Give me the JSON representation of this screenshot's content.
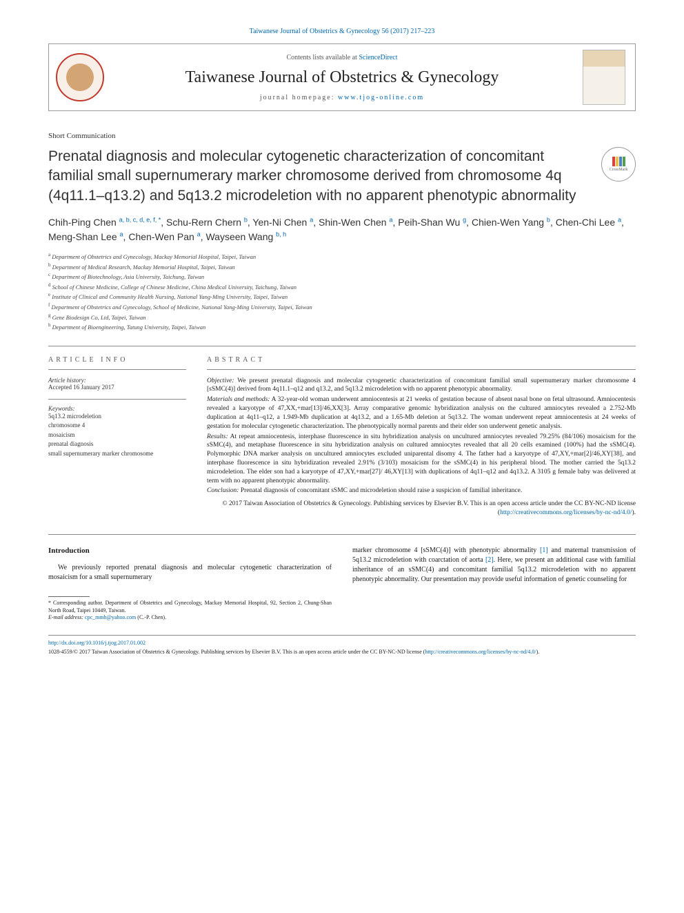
{
  "citation": "Taiwanese Journal of Obstetrics & Gynecology 56 (2017) 217–223",
  "header": {
    "contents_prefix": "Contents lists available at ",
    "contents_link": "ScienceDirect",
    "journal_name": "Taiwanese Journal of Obstetrics & Gynecology",
    "homepage_prefix": "journal homepage: ",
    "homepage_url": "www.tjog-online.com"
  },
  "crossmark_label": "CrossMark",
  "article_type": "Short Communication",
  "title": "Prenatal diagnosis and molecular cytogenetic characterization of concomitant familial small supernumerary marker chromosome derived from chromosome 4q (4q11.1–q13.2) and 5q13.2 microdeletion with no apparent phenotypic abnormality",
  "authors": [
    {
      "name": "Chih-Ping Chen",
      "aff": "a, b, c, d, e, f, *"
    },
    {
      "name": "Schu-Rern Chern",
      "aff": "b"
    },
    {
      "name": "Yen-Ni Chen",
      "aff": "a"
    },
    {
      "name": "Shin-Wen Chen",
      "aff": "a"
    },
    {
      "name": "Peih-Shan Wu",
      "aff": "g"
    },
    {
      "name": "Chien-Wen Yang",
      "aff": "b"
    },
    {
      "name": "Chen-Chi Lee",
      "aff": "a"
    },
    {
      "name": "Meng-Shan Lee",
      "aff": "a"
    },
    {
      "name": "Chen-Wen Pan",
      "aff": "a"
    },
    {
      "name": "Wayseen Wang",
      "aff": "b, h"
    }
  ],
  "affiliations": [
    {
      "key": "a",
      "text": "Department of Obstetrics and Gynecology, Mackay Memorial Hospital, Taipei, Taiwan"
    },
    {
      "key": "b",
      "text": "Department of Medical Research, Mackay Memorial Hospital, Taipei, Taiwan"
    },
    {
      "key": "c",
      "text": "Department of Biotechnology, Asia University, Taichung, Taiwan"
    },
    {
      "key": "d",
      "text": "School of Chinese Medicine, College of Chinese Medicine, China Medical University, Taichung, Taiwan"
    },
    {
      "key": "e",
      "text": "Institute of Clinical and Community Health Nursing, National Yang-Ming University, Taipei, Taiwan"
    },
    {
      "key": "f",
      "text": "Department of Obstetrics and Gynecology, School of Medicine, National Yang-Ming University, Taipei, Taiwan"
    },
    {
      "key": "g",
      "text": "Gene Biodesign Co, Ltd, Taipei, Taiwan"
    },
    {
      "key": "h",
      "text": "Department of Bioengineering, Tatung University, Taipei, Taiwan"
    }
  ],
  "info": {
    "heading": "ARTICLE INFO",
    "history_label": "Article history:",
    "history_text": "Accepted 16 January 2017",
    "keywords_label": "Keywords:",
    "keywords": [
      "5q13.2 microdeletion",
      "chromosome 4",
      "mosaicism",
      "prenatal diagnosis",
      "small supernumerary marker chromosome"
    ]
  },
  "abstract": {
    "heading": "ABSTRACT",
    "objective_label": "Objective:",
    "objective": " We present prenatal diagnosis and molecular cytogenetic characterization of concomitant familial small supernumerary marker chromosome 4 [sSMC(4)] derived from 4q11.1–q12 and q13.2, and 5q13.2 microdeletion with no apparent phenotypic abnormality.",
    "methods_label": "Materials and methods:",
    "methods": " A 32-year-old woman underwent amniocentesis at 21 weeks of gestation because of absent nasal bone on fetal ultrasound. Amniocentesis revealed a karyotype of 47,XX,+mar[13]/46,XX[3]. Array comparative genomic hybridization analysis on the cultured amniocytes revealed a 2.752-Mb duplication at 4q11–q12, a 1.949-Mb duplication at 4q13.2, and a 1.65-Mb deletion at 5q13.2. The woman underwent repeat amniocentesis at 24 weeks of gestation for molecular cytogenetic characterization. The phenotypically normal parents and their elder son underwent genetic analysis.",
    "results_label": "Results:",
    "results": " At repeat amniocentesis, interphase fluorescence in situ hybridization analysis on uncultured amniocytes revealed 79.25% (84/106) mosaicism for the sSMC(4), and metaphase fluorescence in situ hybridization analysis on cultured amniocytes revealed that all 20 cells examined (100%) had the sSMC(4). Polymorphic DNA marker analysis on uncultured amniocytes excluded uniparental disomy 4. The father had a karyotype of 47,XY,+mar[2]/46,XY[38], and interphase fluorescence in situ hybridization revealed 2.91% (3/103) mosaicism for the sSMC(4) in his peripheral blood. The mother carried the 5q13.2 microdeletion. The elder son had a karyotype of 47,XY,+mar[27]/ 46,XY[13] with duplications of 4q11–q12 and 4q13.2. A 3105 g female baby was delivered at term with no apparent phenotypic abnormality.",
    "conclusion_label": "Conclusion:",
    "conclusion": " Prenatal diagnosis of concomitant sSMC and microdeletion should raise a suspicion of familial inheritance.",
    "copyright": "© 2017 Taiwan Association of Obstetrics & Gynecology. Publishing services by Elsevier B.V. This is an open access article under the CC BY-NC-ND license (",
    "copyright_url": "http://creativecommons.org/licenses/by-nc-nd/4.0/",
    "copyright_close": ")."
  },
  "body": {
    "intro_heading": "Introduction",
    "intro_left": "We previously reported prenatal diagnosis and molecular cytogenetic characterization of mosaicism for a small supernumerary",
    "intro_right_1": "marker chromosome 4 [sSMC(4)] with phenotypic abnormality ",
    "ref1": "[1]",
    "intro_right_2": " and maternal transmission of 5q13.2 microdeletion with coarctation of aorta ",
    "ref2": "[2]",
    "intro_right_3": ". Here, we present an additional case with familial inheritance of an sSMC(4) and concomitant familial 5q13.2 microdeletion with no apparent phenotypic abnormality. Our presentation may provide useful information of genetic counseling for"
  },
  "corresponding": {
    "label": "* Corresponding author.",
    "text": " Department of Obstetrics and Gynecology, Mackay Memorial Hospital, 92, Section 2, Chung-Shan North Road, Taipei 10449, Taiwan.",
    "email_label": "E-mail address:",
    "email": "cpc_mmh@yahoo.com",
    "email_name": " (C.-P. Chen)."
  },
  "footer": {
    "doi": "http://dx.doi.org/10.1016/j.tjog.2017.01.002",
    "issn_line": "1028-4559/© 2017 Taiwan Association of Obstetrics & Gynecology. Publishing services by Elsevier B.V. This is an open access article under the CC BY-NC-ND license (",
    "license_url": "http://creativecommons.org/licenses/by-nc-nd/4.0/",
    "issn_close": ")."
  },
  "colors": {
    "link": "#0066aa",
    "logo_ring": "#c0392b",
    "text": "#1a1a1a",
    "rule": "#888888",
    "crossmark_bars": [
      "#d94040",
      "#f0c040",
      "#5080c0",
      "#50a050"
    ]
  }
}
